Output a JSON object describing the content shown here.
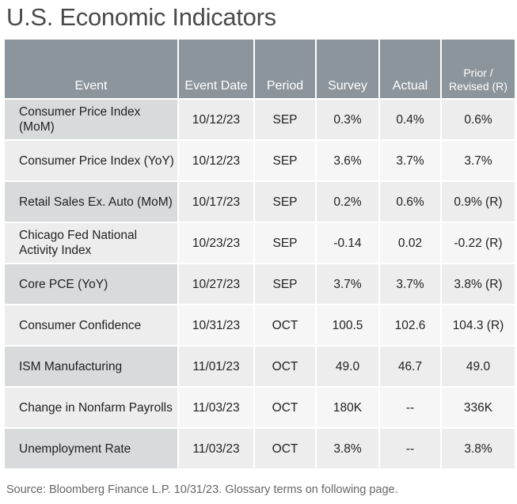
{
  "header": {
    "title": "U.S. Economic Indicators"
  },
  "table": {
    "columns": [
      "Event",
      "Event Date",
      "Period",
      "Survey",
      "Actual",
      "Prior / Revised (R)"
    ],
    "rows": [
      [
        "Consumer Price Index (MoM)",
        "10/12/23",
        "SEP",
        "0.3%",
        "0.4%",
        "0.6%"
      ],
      [
        "Consumer Price Index (YoY)",
        "10/12/23",
        "SEP",
        "3.6%",
        "3.7%",
        "3.7%"
      ],
      [
        "Retail Sales Ex. Auto (MoM)",
        "10/17/23",
        "SEP",
        "0.2%",
        "0.6%",
        "0.9% (R)"
      ],
      [
        "Chicago Fed National Activity Index",
        "10/23/23",
        "SEP",
        "-0.14",
        "0.02",
        "-0.22 (R)"
      ],
      [
        "Core PCE (YoY)",
        "10/27/23",
        "SEP",
        "3.7%",
        "3.7%",
        "3.8% (R)"
      ],
      [
        "Consumer Confidence",
        "10/31/23",
        "OCT",
        "100.5",
        "102.6",
        "104.3 (R)"
      ],
      [
        "ISM Manufacturing",
        "11/01/23",
        "OCT",
        "49.0",
        "46.7",
        "49.0"
      ],
      [
        "Change in Nonfarm Payrolls",
        "11/03/23",
        "OCT",
        "180K",
        "--",
        "336K"
      ],
      [
        "Unemployment Rate",
        "11/03/23",
        "OCT",
        "3.8%",
        "--",
        "3.8%"
      ]
    ]
  },
  "footer": {
    "source": "Source: Bloomberg Finance L.P. 10/31/23. Glossary terms on following page."
  }
}
